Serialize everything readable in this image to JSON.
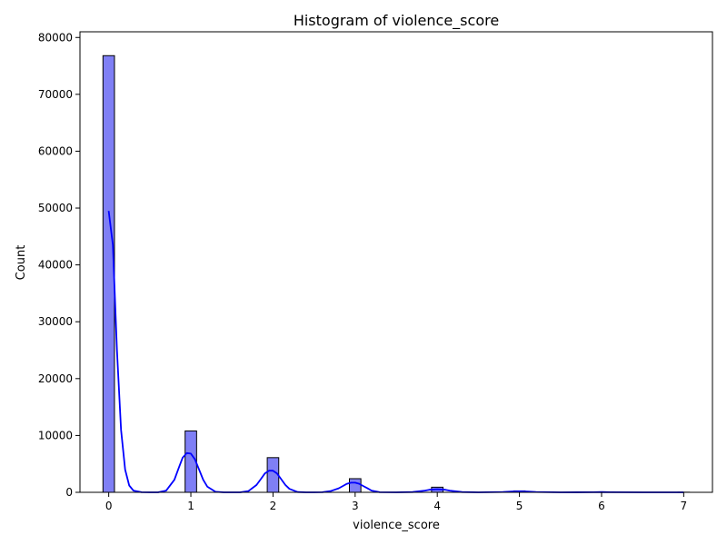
{
  "chart_data": {
    "type": "bar",
    "title": "Histogram of violence_score",
    "xlabel": "violence_score",
    "ylabel": "Count",
    "xlim": [
      -0.35,
      7.35
    ],
    "ylim": [
      0,
      81000
    ],
    "x_ticks": [
      0,
      1,
      2,
      3,
      4,
      5,
      6,
      7
    ],
    "y_ticks": [
      0,
      10000,
      20000,
      30000,
      40000,
      50000,
      60000,
      70000,
      80000
    ],
    "grid": false,
    "legend": "none",
    "bin_width": 0.14,
    "bins": [
      {
        "x": 0,
        "count": 76800
      },
      {
        "x": 1,
        "count": 10800
      },
      {
        "x": 2,
        "count": 6100
      },
      {
        "x": 3,
        "count": 2400
      },
      {
        "x": 4,
        "count": 900
      },
      {
        "x": 5,
        "count": 250
      },
      {
        "x": 6,
        "count": 80
      },
      {
        "x": 7,
        "count": 20
      }
    ],
    "kde": {
      "x": [
        0,
        0.05,
        0.1,
        0.15,
        0.2,
        0.25,
        0.3,
        0.4,
        0.5,
        0.6,
        0.7,
        0.8,
        0.85,
        0.9,
        0.95,
        1.0,
        1.05,
        1.1,
        1.15,
        1.2,
        1.3,
        1.4,
        1.5,
        1.6,
        1.7,
        1.8,
        1.85,
        1.9,
        1.95,
        2.0,
        2.05,
        2.1,
        2.15,
        2.2,
        2.3,
        2.4,
        2.5,
        2.6,
        2.7,
        2.8,
        2.85,
        2.9,
        2.95,
        3.0,
        3.05,
        3.1,
        3.15,
        3.2,
        3.3,
        3.5,
        3.7,
        3.85,
        3.9,
        4.0,
        4.1,
        4.15,
        4.3,
        4.5,
        4.8,
        4.9,
        5.0,
        5.1,
        5.2,
        5.5,
        5.9,
        6.0,
        6.1,
        6.5,
        7.0
      ],
      "y": [
        49500,
        43500,
        25000,
        11000,
        4000,
        1200,
        300,
        20,
        0,
        5,
        300,
        2200,
        4200,
        6100,
        6900,
        6800,
        5800,
        4000,
        2200,
        1000,
        100,
        5,
        0,
        5,
        200,
        1300,
        2300,
        3300,
        3800,
        3800,
        3300,
        2300,
        1300,
        600,
        50,
        0,
        0,
        20,
        200,
        700,
        1100,
        1500,
        1700,
        1700,
        1500,
        1100,
        700,
        300,
        20,
        0,
        40,
        300,
        450,
        550,
        450,
        300,
        40,
        0,
        60,
        140,
        170,
        140,
        60,
        0,
        10,
        40,
        20,
        0,
        0
      ],
      "color": "#0000ff"
    },
    "bar_fill": "#7f7ff5",
    "bar_edge": "#000000"
  }
}
